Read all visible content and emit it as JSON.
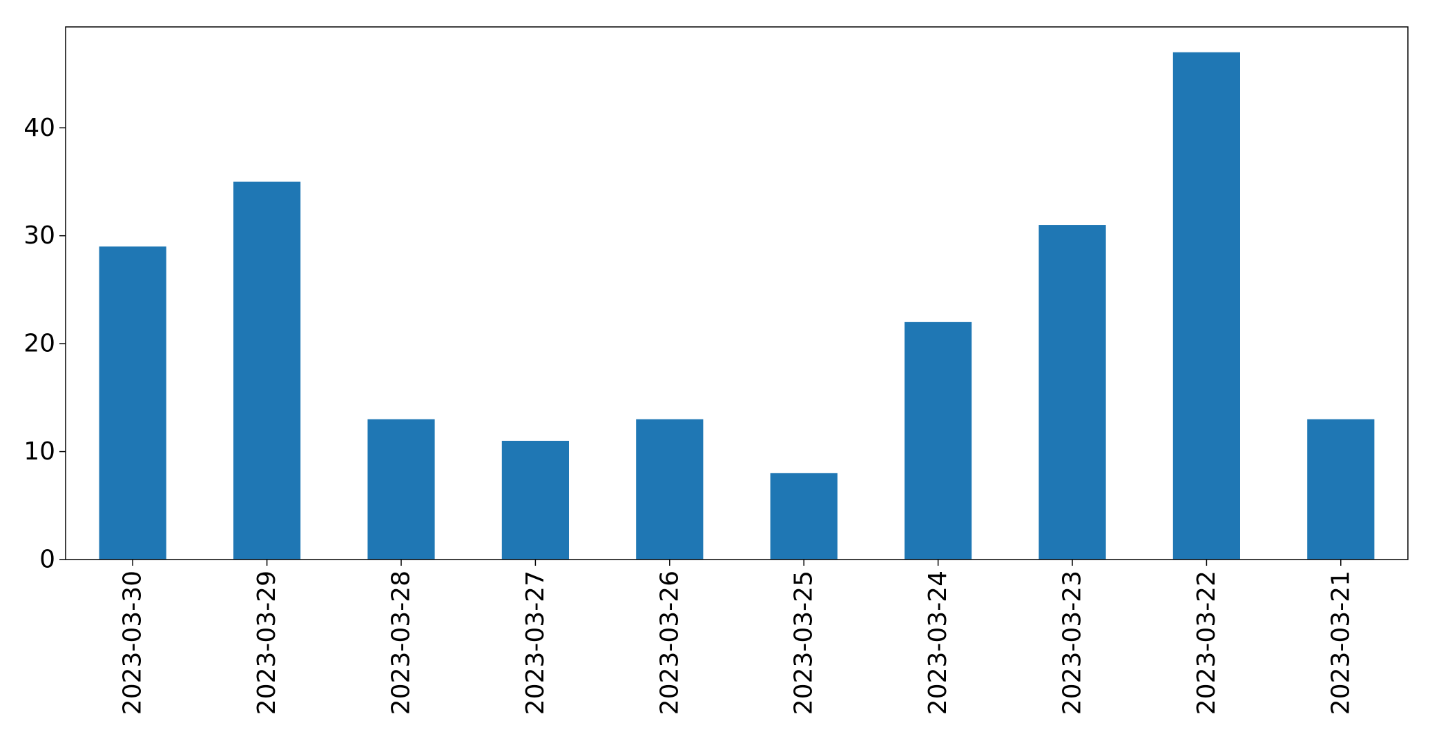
{
  "chart_data": {
    "type": "bar",
    "title": "",
    "xlabel": "",
    "ylabel": "",
    "categories": [
      "2023-03-30",
      "2023-03-29",
      "2023-03-28",
      "2023-03-27",
      "2023-03-26",
      "2023-03-25",
      "2023-03-24",
      "2023-03-23",
      "2023-03-22",
      "2023-03-21"
    ],
    "values": [
      29,
      35,
      13,
      11,
      13,
      8,
      22,
      31,
      47,
      13
    ],
    "ylim": [
      0,
      49.35
    ],
    "yticks": [
      0,
      10,
      20,
      30,
      40
    ],
    "bar_color": "#1f77b4",
    "grid": false,
    "legend": "none",
    "x_tick_rotation": "vertical"
  }
}
